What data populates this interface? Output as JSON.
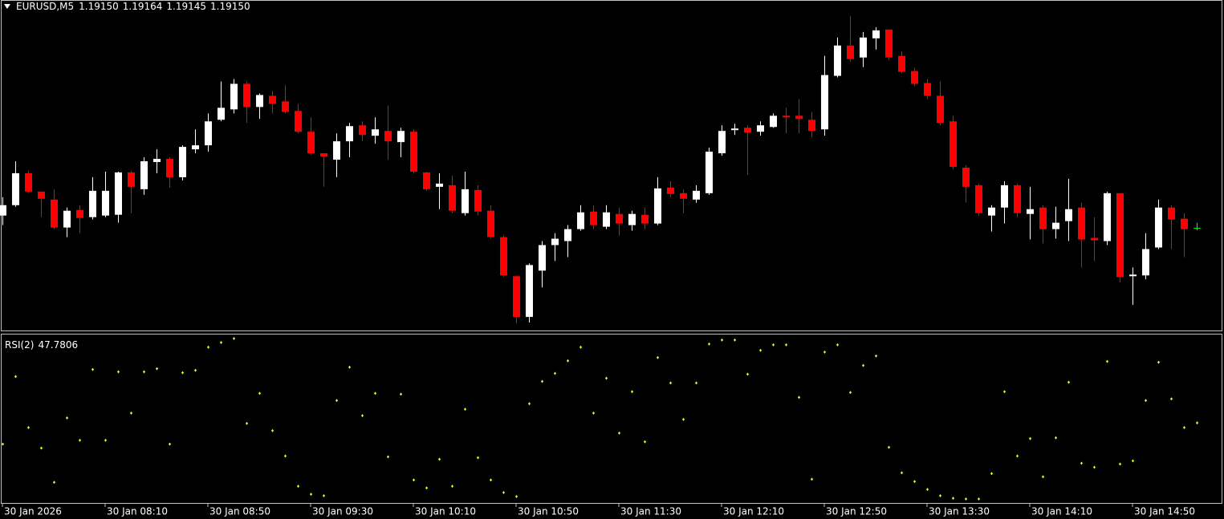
{
  "chart_data": [
    {
      "type": "candlestick",
      "title": "EURUSD,M5",
      "ohlc_labels": [
        "1.19150",
        "1.19164",
        "1.19145",
        "1.19150"
      ],
      "up_color": "#ffffff",
      "down_color": "#ff0000",
      "doji_color": "#00ff00",
      "ylim": [
        1.18894,
        1.19718
      ],
      "open": [
        1.19182,
        1.19208,
        1.19288,
        1.19242,
        1.19222,
        1.19152,
        1.19196,
        1.19178,
        1.19182,
        1.19184,
        1.1929,
        1.19248,
        1.19316,
        1.19324,
        1.19278,
        1.19348,
        1.19358,
        1.19422,
        1.19448,
        1.19512,
        1.19454,
        1.19482,
        1.19468,
        1.19444,
        1.19392,
        1.19338,
        1.19322,
        1.19368,
        1.19408,
        1.19382,
        1.19394,
        1.19366,
        1.19392,
        1.1929,
        1.19254,
        1.19258,
        1.19188,
        1.19246,
        1.19194,
        1.19128,
        1.1903,
        1.18928,
        1.19044,
        1.19108,
        1.19118,
        1.19148,
        1.19192,
        1.19154,
        1.19186,
        1.19158,
        1.19184,
        1.19162,
        1.19252,
        1.19238,
        1.19222,
        1.19238,
        1.19338,
        1.19396,
        1.19402,
        1.19392,
        1.19404,
        1.19432,
        1.19432,
        1.19422,
        1.19398,
        1.19532,
        1.19608,
        1.19578,
        1.19626,
        1.19648,
        1.19582,
        1.19544,
        1.19514,
        1.19482,
        1.19418,
        1.19302,
        1.19258,
        1.19182,
        1.19202,
        1.19258,
        1.19186,
        1.19202,
        1.19148,
        1.19168,
        1.19202,
        1.19126,
        1.19118,
        1.19238,
        1.1903,
        1.19032,
        1.19102,
        1.19202,
        1.19174,
        1.1915
      ],
      "high": [
        1.19228,
        1.19318,
        1.19294,
        1.19242,
        1.19248,
        1.19202,
        1.19208,
        1.19278,
        1.19292,
        1.19292,
        1.19294,
        1.19328,
        1.19348,
        1.19328,
        1.19358,
        1.19398,
        1.19438,
        1.19518,
        1.19524,
        1.19518,
        1.19488,
        1.19494,
        1.19508,
        1.19462,
        1.19428,
        1.19338,
        1.19388,
        1.19414,
        1.19418,
        1.19428,
        1.19458,
        1.19402,
        1.19398,
        1.19292,
        1.19288,
        1.19282,
        1.19292,
        1.19258,
        1.19208,
        1.19132,
        1.19032,
        1.19062,
        1.19118,
        1.19138,
        1.19158,
        1.19208,
        1.19208,
        1.19208,
        1.19202,
        1.19194,
        1.19202,
        1.19278,
        1.19268,
        1.19248,
        1.19258,
        1.19352,
        1.19408,
        1.19412,
        1.19408,
        1.19418,
        1.19438,
        1.19452,
        1.19474,
        1.19442,
        1.19582,
        1.19628,
        1.19682,
        1.19642,
        1.19654,
        1.19648,
        1.19594,
        1.19552,
        1.19524,
        1.19518,
        1.19432,
        1.19308,
        1.19262,
        1.19208,
        1.19268,
        1.19262,
        1.19254,
        1.19208,
        1.19204,
        1.19274,
        1.19214,
        1.19178,
        1.19242,
        1.19238,
        1.19052,
        1.19138,
        1.19222,
        1.19208,
        1.19188,
        1.19164
      ],
      "low": [
        1.19158,
        1.19204,
        1.19238,
        1.19178,
        1.19148,
        1.19128,
        1.19138,
        1.19172,
        1.19178,
        1.19164,
        1.19188,
        1.19234,
        1.19288,
        1.19252,
        1.1927,
        1.19338,
        1.19342,
        1.19418,
        1.19438,
        1.19414,
        1.19424,
        1.19438,
        1.19438,
        1.19388,
        1.19334,
        1.19254,
        1.19278,
        1.19328,
        1.19368,
        1.19362,
        1.19322,
        1.19328,
        1.19288,
        1.19244,
        1.19198,
        1.19188,
        1.19182,
        1.19182,
        1.19124,
        1.19028,
        1.18912,
        1.18914,
        1.19002,
        1.19068,
        1.19078,
        1.19144,
        1.19148,
        1.19148,
        1.19132,
        1.19144,
        1.19148,
        1.19158,
        1.19228,
        1.19188,
        1.19214,
        1.19234,
        1.19332,
        1.19384,
        1.19284,
        1.19382,
        1.19402,
        1.19388,
        1.19388,
        1.19378,
        1.19382,
        1.19528,
        1.19568,
        1.19554,
        1.19598,
        1.19572,
        1.19538,
        1.19506,
        1.19474,
        1.19408,
        1.19298,
        1.19214,
        1.19182,
        1.19142,
        1.19162,
        1.19178,
        1.19122,
        1.19112,
        1.19124,
        1.19118,
        1.19052,
        1.19068,
        1.19108,
        1.19014,
        1.18958,
        1.19022,
        1.19098,
        1.19098,
        1.19078,
        1.19145
      ],
      "close": [
        1.19208,
        1.19288,
        1.19242,
        1.19224,
        1.19152,
        1.19194,
        1.19176,
        1.19244,
        1.19244,
        1.1929,
        1.19254,
        1.19318,
        1.19324,
        1.19278,
        1.19354,
        1.19358,
        1.19418,
        1.19452,
        1.19512,
        1.19454,
        1.19484,
        1.19462,
        1.19442,
        1.19392,
        1.19338,
        1.1933,
        1.19368,
        1.19406,
        1.19384,
        1.19398,
        1.19368,
        1.19394,
        1.19292,
        1.19248,
        1.19262,
        1.19194,
        1.19248,
        1.19192,
        1.19128,
        1.19032,
        1.18928,
        1.19058,
        1.19108,
        1.19124,
        1.19148,
        1.1919,
        1.19158,
        1.1919,
        1.19162,
        1.19186,
        1.19162,
        1.1925,
        1.19236,
        1.19224,
        1.19244,
        1.19342,
        1.19394,
        1.194,
        1.1939,
        1.19408,
        1.19432,
        1.19428,
        1.19424,
        1.19394,
        1.19534,
        1.19608,
        1.19574,
        1.19628,
        1.19646,
        1.19578,
        1.19542,
        1.19512,
        1.19482,
        1.19414,
        1.19304,
        1.19254,
        1.19188,
        1.19202,
        1.19258,
        1.19188,
        1.19198,
        1.19148,
        1.19164,
        1.19198,
        1.19122,
        1.1912,
        1.19238,
        1.19028,
        1.19034,
        1.19098,
        1.19202,
        1.19172,
        1.19148,
        1.1915
      ]
    },
    {
      "type": "dots",
      "title": "RSI(2)",
      "ylim": [
        0,
        100
      ],
      "categories": [
        "30 Jan 2026",
        null,
        null,
        null,
        null,
        null,
        null,
        null,
        "30 Jan 08:10",
        null,
        null,
        null,
        null,
        null,
        null,
        null,
        "30 Jan 08:50",
        null,
        null,
        null,
        null,
        null,
        null,
        null,
        "30 Jan 09:30",
        null,
        null,
        null,
        null,
        null,
        null,
        null,
        "30 Jan 10:10",
        null,
        null,
        null,
        null,
        null,
        null,
        null,
        "30 Jan 10:50",
        null,
        null,
        null,
        null,
        null,
        null,
        null,
        "30 Jan 11:30",
        null,
        null,
        null,
        null,
        null,
        null,
        null,
        "30 Jan 12:10",
        null,
        null,
        null,
        null,
        null,
        null,
        null,
        "30 Jan 12:50",
        null,
        null,
        null,
        null,
        null,
        null,
        null,
        "30 Jan 13:30",
        null,
        null,
        null,
        null,
        null,
        null,
        null,
        "30 Jan 14:10",
        null,
        null,
        null,
        null,
        null,
        null,
        null,
        "30 Jan 14:50",
        null,
        null,
        null,
        null,
        null
      ],
      "series": [
        {
          "name": "RSI(2)",
          "color": "#ffff00",
          "values": [
            35.1,
            75.4,
            45.0,
            32.7,
            12.3,
            50.7,
            37.4,
            79.6,
            37.4,
            78.2,
            53.6,
            78.2,
            80.1,
            35.1,
            77.7,
            79.1,
            92.9,
            95.7,
            98.1,
            47.4,
            65.4,
            43.1,
            28.0,
            10.0,
            5.2,
            4.3,
            61.1,
            81.0,
            52.1,
            65.4,
            27.5,
            64.9,
            13.7,
            9.0,
            26.1,
            10.0,
            55.9,
            27.0,
            13.7,
            6.2,
            3.8,
            59.2,
            72.5,
            77.3,
            84.8,
            92.9,
            53.6,
            74.4,
            41.7,
            66.4,
            36.5,
            86.7,
            71.6,
            49.8,
            71.6,
            94.8,
            97.2,
            97.2,
            76.8,
            91.0,
            94.3,
            94.3,
            63.0,
            14.2,
            90.0,
            94.3,
            65.9,
            82.0,
            87.7,
            33.2,
            18.0,
            12.8,
            8.1,
            4.3,
            2.8,
            2.4,
            2.4,
            17.5,
            66.4,
            28.0,
            38.4,
            15.6,
            38.9,
            72.0,
            23.7,
            21.3,
            84.4,
            23.2,
            25.1,
            61.1,
            83.9,
            62.1,
            45.0,
            47.7806
          ]
        }
      ]
    }
  ]
}
